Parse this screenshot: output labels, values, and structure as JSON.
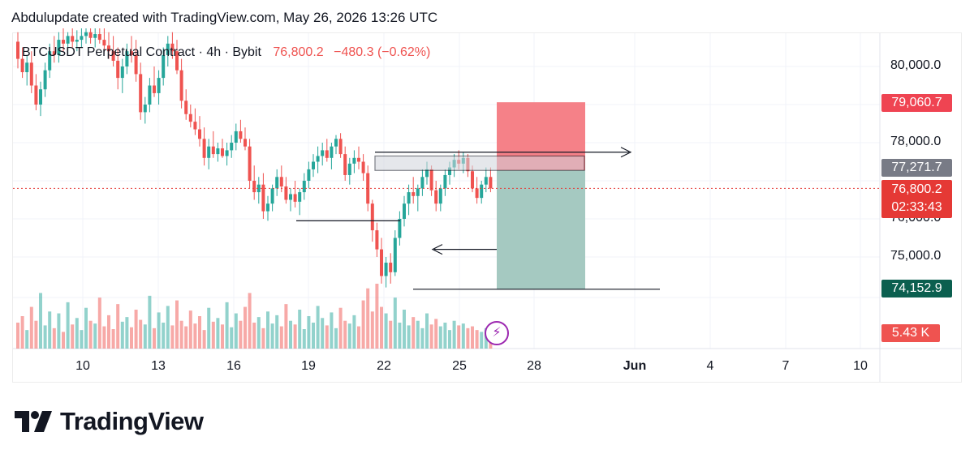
{
  "header": {
    "attribution": "Abdulupdate created with TradingView.com, May 26, 2026 13:26 UTC"
  },
  "legend": {
    "symbol": "BTCUSDT Perpetual Contract · 4h · Bybit",
    "last": "76,800.2",
    "change": "−480.3 (−0.62%)"
  },
  "branding": {
    "logo_text": "TradingView",
    "logo_icon": "tradingview-logo-icon"
  },
  "colors": {
    "up": "#26a69a",
    "down": "#ef5350",
    "stop_zone": "#f47a82",
    "target_zone": "#a5c9c1",
    "current_price": "#e53935",
    "gray_label": "#787b86",
    "target_label": "#0b5f4f"
  },
  "price_labels": {
    "stop": "79,060.7",
    "box": "77,271.7",
    "current": "76,800.2",
    "countdown": "02:33:43",
    "target": "74,152.9",
    "volume": "5.43 K"
  },
  "chart_data": {
    "type": "candlestick",
    "title": "BTCUSDT Perpetual Contract · 4h · Bybit",
    "timeframe": "4h",
    "y_ticks": [
      "80,000.0",
      "78,000.0",
      "76,000.0",
      "75,000.0"
    ],
    "ylim": [
      73500,
      81000
    ],
    "x_ticks": [
      "10",
      "13",
      "16",
      "19",
      "22",
      "25",
      "28",
      "Jun",
      "4",
      "7",
      "10"
    ],
    "grid": true,
    "last_price": 76800.2,
    "change": -480.3,
    "change_pct": -0.62,
    "last_volume_k": 5.43,
    "candles": [
      [
        80650,
        80900,
        79950,
        80200
      ],
      [
        80200,
        80500,
        79700,
        79850
      ],
      [
        79850,
        80300,
        79500,
        80100
      ],
      [
        80100,
        80400,
        79300,
        79500
      ],
      [
        79500,
        79800,
        78850,
        79000
      ],
      [
        79000,
        79600,
        78700,
        79400
      ],
      [
        79400,
        80100,
        79200,
        79900
      ],
      [
        79900,
        80600,
        79700,
        80400
      ],
      [
        80400,
        80800,
        80100,
        80300
      ],
      [
        80300,
        80900,
        80100,
        80700
      ],
      [
        80700,
        81000,
        80400,
        80600
      ],
      [
        80600,
        80900,
        80300,
        80800
      ],
      [
        80800,
        81000,
        80500,
        80650
      ],
      [
        80650,
        80950,
        80400,
        80700
      ],
      [
        80700,
        81000,
        80500,
        80800
      ],
      [
        80800,
        81000,
        80600,
        80900
      ],
      [
        80900,
        81000,
        80600,
        80750
      ],
      [
        80750,
        81000,
        80500,
        80850
      ],
      [
        80850,
        81000,
        80600,
        80700
      ],
      [
        80700,
        81000,
        80400,
        80550
      ],
      [
        80550,
        80900,
        80200,
        80400
      ],
      [
        80400,
        80800,
        80000,
        80150
      ],
      [
        80150,
        80500,
        79400,
        79700
      ],
      [
        79700,
        80200,
        79300,
        80000
      ],
      [
        80000,
        80600,
        79800,
        80400
      ],
      [
        80400,
        80800,
        80100,
        80300
      ],
      [
        80300,
        80700,
        79600,
        79800
      ],
      [
        79800,
        80100,
        78600,
        78800
      ],
      [
        78800,
        79200,
        78500,
        79000
      ],
      [
        79000,
        79700,
        78800,
        79500
      ],
      [
        79500,
        80000,
        79200,
        79300
      ],
      [
        79300,
        79900,
        79000,
        79700
      ],
      [
        79700,
        80500,
        79500,
        80300
      ],
      [
        80300,
        80800,
        80000,
        80600
      ],
      [
        80600,
        80900,
        80200,
        80400
      ],
      [
        80400,
        80700,
        79800,
        79900
      ],
      [
        79900,
        80200,
        78900,
        79100
      ],
      [
        79100,
        79400,
        78600,
        78750
      ],
      [
        78750,
        79000,
        78400,
        78550
      ],
      [
        78550,
        78900,
        78200,
        78350
      ],
      [
        78350,
        78700,
        77900,
        78100
      ],
      [
        78100,
        78400,
        77400,
        77600
      ],
      [
        77600,
        78100,
        77300,
        77900
      ],
      [
        77900,
        78300,
        77600,
        77700
      ],
      [
        77700,
        78000,
        77500,
        77850
      ],
      [
        77850,
        78100,
        77600,
        77650
      ],
      [
        77650,
        78000,
        77400,
        77800
      ],
      [
        77800,
        78200,
        77600,
        78000
      ],
      [
        78000,
        78500,
        77800,
        78300
      ],
      [
        78300,
        78600,
        78000,
        78100
      ],
      [
        78100,
        78400,
        77800,
        77900
      ],
      [
        77900,
        78100,
        76800,
        77000
      ],
      [
        77000,
        77400,
        76500,
        76700
      ],
      [
        76700,
        77100,
        76400,
        76900
      ],
      [
        76900,
        77200,
        76000,
        76200
      ],
      [
        76200,
        76600,
        75950,
        76400
      ],
      [
        76400,
        76900,
        76200,
        76800
      ],
      [
        76800,
        77300,
        76600,
        77100
      ],
      [
        77100,
        77400,
        76700,
        76850
      ],
      [
        76850,
        77100,
        76400,
        76500
      ],
      [
        76500,
        76800,
        76200,
        76650
      ],
      [
        76650,
        77000,
        76300,
        76450
      ],
      [
        76450,
        76800,
        76100,
        76700
      ],
      [
        76700,
        77200,
        76500,
        77000
      ],
      [
        77000,
        77500,
        76800,
        77300
      ],
      [
        77300,
        77700,
        77100,
        77500
      ],
      [
        77500,
        77900,
        77200,
        77650
      ],
      [
        77650,
        78000,
        77400,
        77800
      ],
      [
        77800,
        78100,
        77500,
        77600
      ],
      [
        77600,
        78000,
        77300,
        77900
      ],
      [
        77900,
        78200,
        77700,
        78100
      ],
      [
        78100,
        78250,
        77600,
        77700
      ],
      [
        77700,
        77900,
        77000,
        77150
      ],
      [
        77150,
        77600,
        76900,
        77450
      ],
      [
        77450,
        77800,
        77200,
        77600
      ],
      [
        77600,
        77900,
        77300,
        77500
      ],
      [
        77500,
        77700,
        77000,
        77200
      ],
      [
        77200,
        77400,
        76200,
        76400
      ],
      [
        76400,
        76500,
        75400,
        75700
      ],
      [
        75700,
        75900,
        75000,
        75200
      ],
      [
        75200,
        75500,
        74300,
        74500
      ],
      [
        74500,
        75000,
        74200,
        74850
      ],
      [
        74850,
        75100,
        74300,
        74600
      ],
      [
        74600,
        75700,
        74500,
        75500
      ],
      [
        75500,
        76200,
        75300,
        76000
      ],
      [
        76000,
        76600,
        75800,
        76400
      ],
      [
        76400,
        76900,
        76100,
        76700
      ],
      [
        76700,
        77100,
        76400,
        76600
      ],
      [
        76600,
        76900,
        76200,
        76800
      ],
      [
        76800,
        77300,
        76600,
        77100
      ],
      [
        77100,
        77500,
        76900,
        77300
      ],
      [
        77300,
        77400,
        76600,
        76750
      ],
      [
        76750,
        77000,
        76200,
        76400
      ],
      [
        76400,
        76900,
        76200,
        76800
      ],
      [
        76800,
        77300,
        76600,
        77150
      ],
      [
        77150,
        77500,
        76900,
        77350
      ],
      [
        77350,
        77700,
        77100,
        77550
      ],
      [
        77550,
        77800,
        77300,
        77450
      ],
      [
        77450,
        77750,
        77200,
        77600
      ],
      [
        77600,
        77700,
        77100,
        77250
      ],
      [
        77250,
        77400,
        76700,
        76800
      ],
      [
        76800,
        77100,
        76400,
        76550
      ],
      [
        76550,
        77000,
        76400,
        76900
      ],
      [
        76900,
        77350,
        76700,
        77100
      ],
      [
        77100,
        77350,
        76700,
        76800
      ]
    ],
    "volume": [
      28,
      35,
      20,
      45,
      30,
      60,
      25,
      40,
      22,
      38,
      18,
      50,
      26,
      33,
      20,
      44,
      30,
      27,
      55,
      24,
      36,
      21,
      48,
      29,
      34,
      23,
      42,
      31,
      26,
      57,
      22,
      39,
      28,
      46,
      25,
      52,
      30,
      24,
      41,
      27,
      35,
      20,
      44,
      29,
      33,
      26,
      50,
      23,
      38,
      30,
      45,
      60,
      28,
      34,
      22,
      40,
      27,
      36,
      24,
      48,
      30,
      26,
      42,
      21,
      35,
      28,
      46,
      33,
      25,
      39,
      22,
      44,
      30,
      27,
      36,
      24,
      52,
      65,
      40,
      70,
      45,
      38,
      30,
      55,
      28,
      42,
      25,
      34,
      30,
      22,
      38,
      26,
      32,
      24,
      28,
      20,
      30,
      25,
      27,
      22,
      24,
      20,
      18,
      22,
      16,
      12
    ],
    "annotations": {
      "short_position": {
        "entry": 77271.7,
        "stop": 79060.7,
        "target": 74152.9
      },
      "horizontal_levels": [
        77750,
        75950,
        74152.9
      ],
      "supply_box": [
        77271.7,
        77650
      ]
    }
  }
}
